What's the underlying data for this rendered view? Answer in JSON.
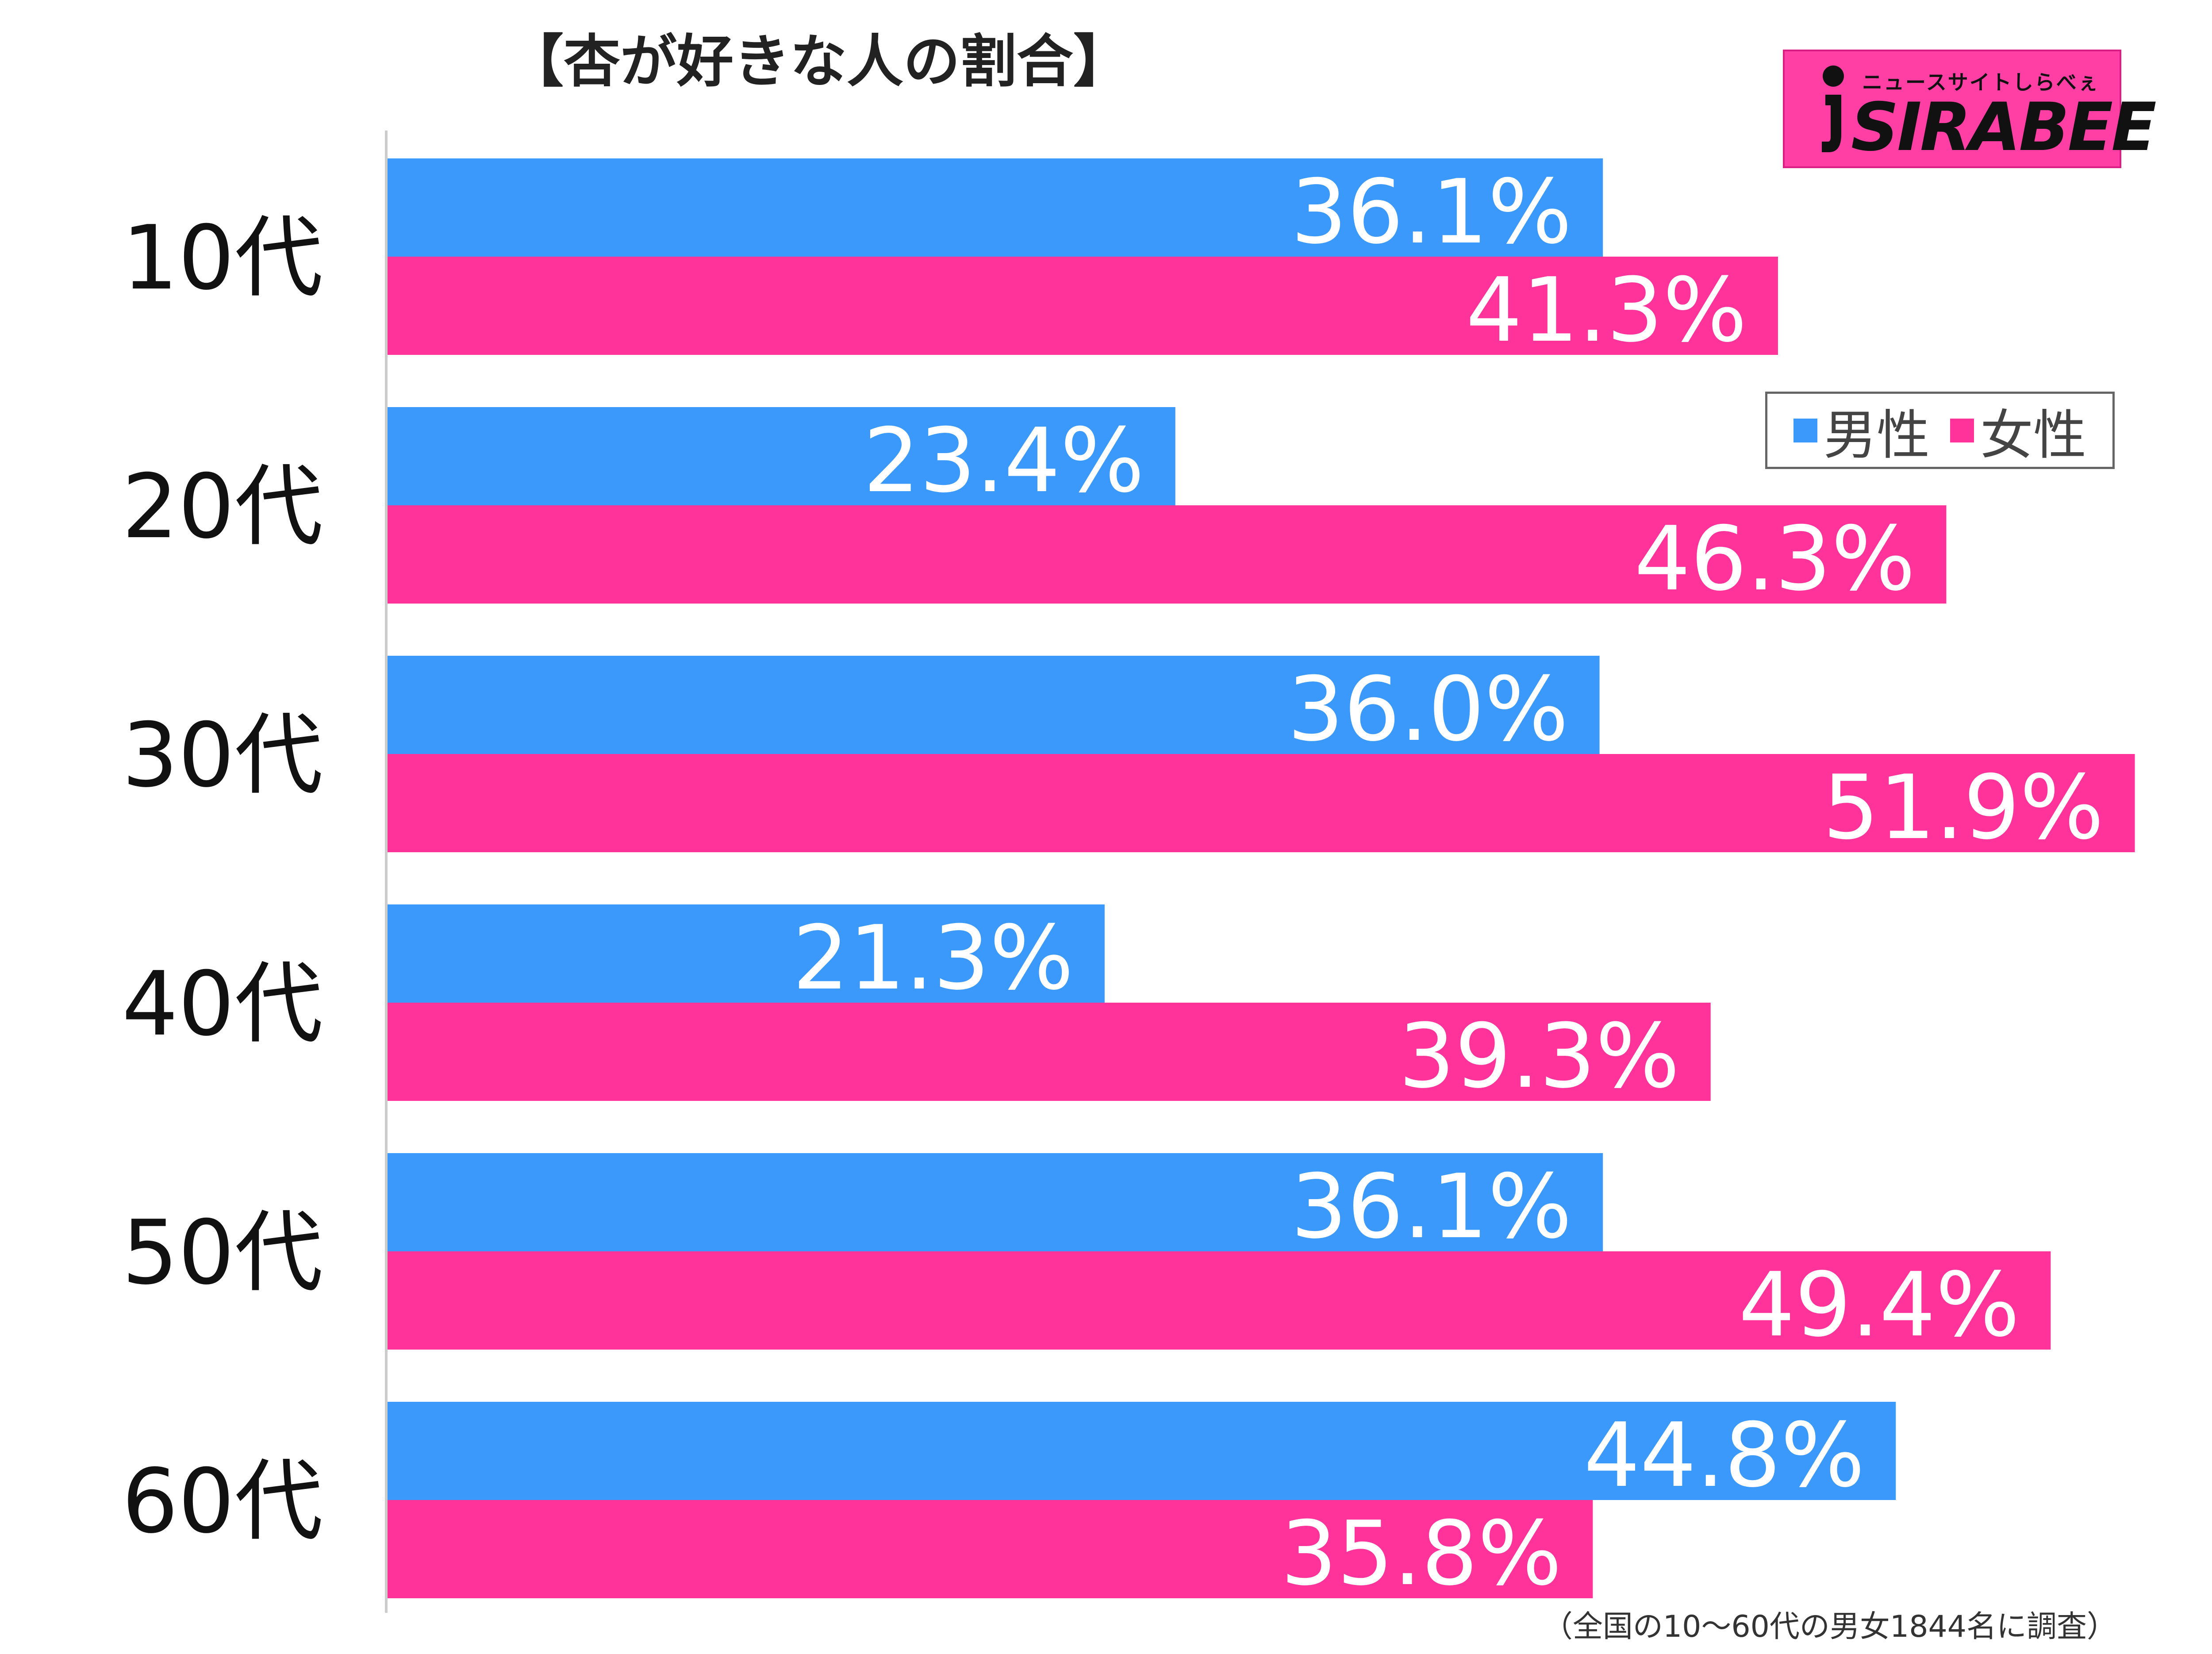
{
  "title": "【杏が好きな人の割合】",
  "logo": {
    "tagline": "ニュースサイトしらべぇ",
    "wordmark": "SIRABEE"
  },
  "legend": {
    "male": "男性",
    "female": "女性"
  },
  "footnote": "（全国の10〜60代の男女1844名に調査）",
  "colors": {
    "male": "#3a99fb",
    "female": "#ff3399",
    "logo_bg": "#ff3fa4",
    "axis": "#cccccc"
  },
  "chart_data": {
    "type": "bar",
    "orientation": "horizontal",
    "categories": [
      "10代",
      "20代",
      "30代",
      "40代",
      "50代",
      "60代"
    ],
    "series": [
      {
        "name": "男性",
        "values": [
          36.1,
          23.4,
          36.0,
          21.3,
          36.1,
          44.8
        ]
      },
      {
        "name": "女性",
        "values": [
          41.3,
          46.3,
          51.9,
          39.3,
          49.4,
          35.8
        ]
      }
    ],
    "value_labels": {
      "男性": [
        "36.1%",
        "23.4%",
        "36.0%",
        "21.3%",
        "36.1%",
        "44.8%"
      ],
      "女性": [
        "41.3%",
        "46.3%",
        "51.9%",
        "39.3%",
        "49.4%",
        "35.8%"
      ]
    },
    "unit": "%",
    "xlim": [
      0,
      51.9
    ],
    "grid": false,
    "legend_position": "right"
  }
}
